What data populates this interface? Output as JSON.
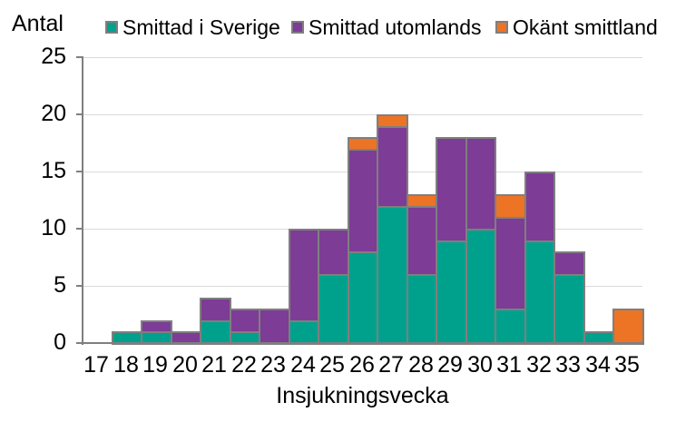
{
  "y_axis_title": "Antal",
  "x_axis_title": "Insjukningsvecka",
  "colors": {
    "bar_border": "#7F7F7F",
    "gridline": "#D9D9D9",
    "axis": "#7F7F7F"
  },
  "legend": [
    {
      "label": "Smittad i Sverige",
      "color": "#00A18C"
    },
    {
      "label": "Smittad utomlands",
      "color": "#7D3C96"
    },
    {
      "label": "Okänt smittland",
      "color": "#ED7325"
    }
  ],
  "chart_data": {
    "type": "bar",
    "stacked": true,
    "xlabel": "Insjukningsvecka",
    "ylabel": "Antal",
    "categories": [
      17,
      18,
      19,
      20,
      21,
      22,
      23,
      24,
      25,
      26,
      27,
      28,
      29,
      30,
      31,
      32,
      33,
      34,
      35
    ],
    "series": [
      {
        "name": "Smittad i Sverige",
        "color": "#00A18C",
        "values": [
          0,
          1,
          1,
          0,
          2,
          1,
          0,
          2,
          6,
          8,
          12,
          6,
          9,
          10,
          3,
          9,
          6,
          1,
          0
        ]
      },
      {
        "name": "Smittad utomlands",
        "color": "#7D3C96",
        "values": [
          0,
          0,
          1,
          1,
          2,
          2,
          3,
          8,
          4,
          9,
          7,
          6,
          9,
          8,
          8,
          6,
          2,
          0,
          0
        ]
      },
      {
        "name": "Okänt smittland",
        "color": "#ED7325",
        "values": [
          0,
          0,
          0,
          0,
          0,
          0,
          0,
          0,
          0,
          1,
          1,
          1,
          0,
          0,
          2,
          0,
          0,
          0,
          3
        ]
      }
    ],
    "ylim": [
      0,
      25
    ],
    "yticks": [
      0,
      5,
      10,
      15,
      20,
      25
    ],
    "grid": true,
    "legend_position": "top"
  }
}
